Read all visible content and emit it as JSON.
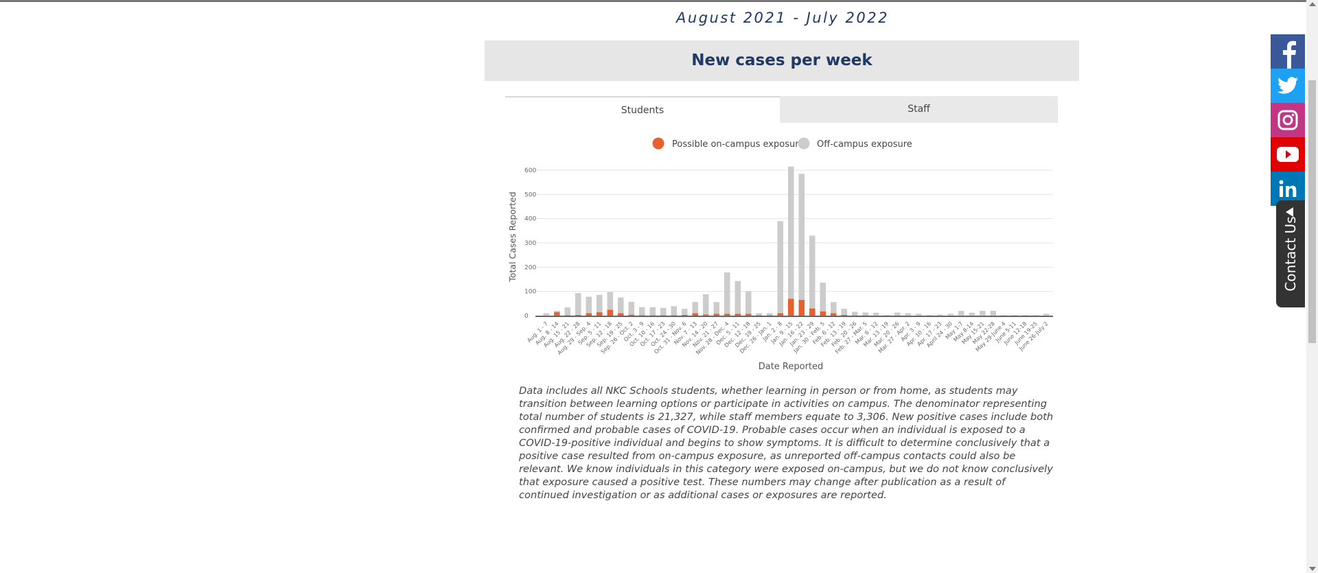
{
  "page": {
    "date_range": "August 2021 - July 2022",
    "panel_title": "New cases per week",
    "tabs": [
      {
        "label": "Students",
        "active": true
      },
      {
        "label": "Staff",
        "active": false
      }
    ],
    "note": "Data includes all NKC Schools students, whether learning in person or from home, as students may transition between learning options or participate in activities on campus. The denominator representing total number of students is 21,327, while staff members equate to 3,306. New positive cases include both confirmed and probable cases of COVID-19. Probable cases occur when an individual is exposed to a COVID-19-positive individual and begins to show symptoms. It is difficult to determine conclusively that a positive case resulted from on-campus exposure, as unreported off-campus contacts could also be relevant. We know individuals in this category were exposed on-campus, but we do not know conclusively that exposure caused a positive test. These numbers may change after publication as a result of continued investigation or as additional cases or exposures are reported."
  },
  "social": {
    "icons": [
      "facebook-icon",
      "twitter-icon",
      "instagram-icon",
      "youtube-icon",
      "linkedin-icon"
    ],
    "colors": [
      "#3b5998",
      "#1da1f2",
      "#c13584",
      "#e00000",
      "#0077b5"
    ]
  },
  "contact": {
    "label": "Contact Us"
  },
  "colors": {
    "on_campus": "#e8602c",
    "off_campus": "#cccccc",
    "title": "#1f3864"
  },
  "chart_data": {
    "type": "bar",
    "stacked": true,
    "xlabel": "Date Reported",
    "ylabel": "Total Cases Reported",
    "ylim": [
      0,
      600
    ],
    "yticks": [
      0,
      100,
      200,
      300,
      400,
      500,
      600
    ],
    "grid": true,
    "legend_position": "top-center",
    "categories": [
      "Aug. 1 - 7",
      "Aug. 8 - 14",
      "Aug. 15 - 21",
      "Aug. 22 - 28",
      "Aug. 29 - Sep. 4",
      "Sep. 5 - 11",
      "Sep. 12 - 18",
      "Sep. 19 - 25",
      "Sep. 26 - Oct. 2",
      "Oct. 3 - 9",
      "Oct. 10 - 16",
      "Oct. 17 - 23",
      "Oct. 24 - 30",
      "Oct. 31 - Nov. 6",
      "Nov. 7 - 13",
      "Nov. 14 - 20",
      "Nov. 21 - 27",
      "Nov. 28 - Dec. 4",
      "Dec. 5 - 11",
      "Dec. 12 - 18",
      "Dec. 19 - 25",
      "Dec. 26 - Jan. 1",
      "Jan. 2 - 8",
      "Jan. 9 - 15",
      "Jan. 16 - 22",
      "Jan. 23 - 29",
      "Jan. 30 - Feb. 5",
      "Feb. 6 - 12",
      "Feb. 13 - 19",
      "Feb. 20 - 26",
      "Feb. 27 - Mar. 5",
      "Mar. 6 - 12",
      "Mar. 13 - 19",
      "Mar. 20 - 26",
      "Mar. 27 - Apr. 2",
      "Apr. 3 - 9",
      "Apr. 10 - 16",
      "Apr. 17 - 23",
      "April 24 - 30",
      "May 1-7",
      "May 8-14",
      "May 15-21",
      "May 22-28",
      "May 29-June 4",
      "June 5-11",
      "June 12-18",
      "June 19-25",
      "June 26-July 2"
    ],
    "series": [
      {
        "name": "Possible on-campus exposure",
        "color": "#e8602c",
        "values": [
          0,
          15,
          2,
          3,
          10,
          14,
          24,
          10,
          4,
          2,
          2,
          2,
          2,
          3,
          10,
          5,
          8,
          8,
          8,
          8,
          2,
          2,
          10,
          70,
          65,
          30,
          18,
          10,
          3,
          1,
          1,
          0,
          0,
          0,
          0,
          0,
          0,
          0,
          0,
          0,
          0,
          0,
          0,
          0,
          0,
          0,
          0,
          0
        ]
      },
      {
        "name": "Off-campus exposure",
        "color": "#cccccc",
        "values": [
          10,
          5,
          32,
          90,
          68,
          72,
          74,
          65,
          53,
          33,
          33,
          30,
          37,
          25,
          46,
          83,
          48,
          170,
          135,
          93,
          8,
          8,
          380,
          545,
          520,
          300,
          118,
          46,
          25,
          15,
          12,
          12,
          3,
          13,
          10,
          8,
          3,
          5,
          8,
          20,
          12,
          20,
          20,
          3,
          3,
          3,
          3,
          8
        ]
      }
    ]
  }
}
